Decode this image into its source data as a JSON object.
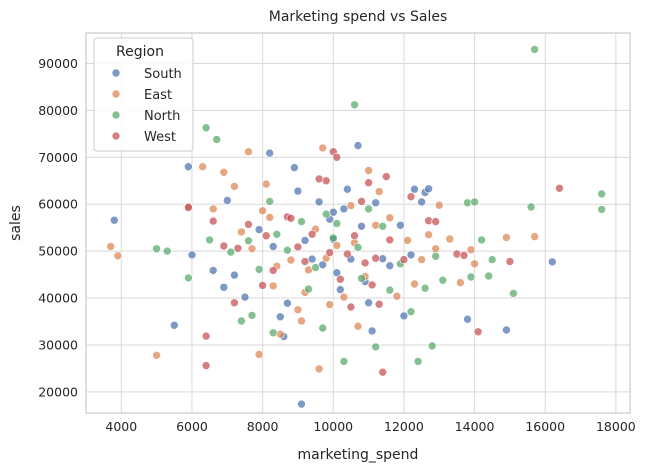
{
  "chart_data": {
    "type": "scatter",
    "title": "Marketing spend vs Sales",
    "xlabel": "marketing_spend",
    "ylabel": "sales",
    "xlim": [
      3000,
      18400
    ],
    "ylim": [
      15500,
      96500
    ],
    "xticks": [
      4000,
      6000,
      8000,
      10000,
      12000,
      14000,
      16000,
      18000
    ],
    "yticks": [
      20000,
      30000,
      40000,
      50000,
      60000,
      70000,
      80000,
      90000
    ],
    "grid": true,
    "legend": {
      "title": "Region",
      "placement": "top-left"
    },
    "series": [
      {
        "name": "South",
        "color": "#4C72B0",
        "points": [
          [
            3800,
            56600
          ],
          [
            5500,
            34200
          ],
          [
            5900,
            68000
          ],
          [
            6000,
            49200
          ],
          [
            6600,
            45900
          ],
          [
            6900,
            42300
          ],
          [
            7000,
            60800
          ],
          [
            7200,
            44900
          ],
          [
            7500,
            40200
          ],
          [
            7900,
            54600
          ],
          [
            8200,
            70900
          ],
          [
            8300,
            51000
          ],
          [
            8500,
            36000
          ],
          [
            8600,
            31800
          ],
          [
            8700,
            38900
          ],
          [
            8900,
            67800
          ],
          [
            9000,
            62800
          ],
          [
            9100,
            17400
          ],
          [
            9200,
            52300
          ],
          [
            9400,
            48300
          ],
          [
            9600,
            60500
          ],
          [
            9700,
            47100
          ],
          [
            9900,
            56800
          ],
          [
            10000,
            52500
          ],
          [
            10000,
            58300
          ],
          [
            10100,
            45400
          ],
          [
            10200,
            41800
          ],
          [
            10300,
            59000
          ],
          [
            10400,
            63200
          ],
          [
            10500,
            48300
          ],
          [
            10700,
            72500
          ],
          [
            10800,
            55300
          ],
          [
            10900,
            43500
          ],
          [
            11000,
            39000
          ],
          [
            11100,
            33000
          ],
          [
            11200,
            60300
          ],
          [
            11400,
            48400
          ],
          [
            11600,
            46900
          ],
          [
            11900,
            55500
          ],
          [
            12000,
            36200
          ],
          [
            12200,
            49200
          ],
          [
            12300,
            63200
          ],
          [
            12500,
            60500
          ],
          [
            12600,
            62500
          ],
          [
            12700,
            63300
          ],
          [
            13800,
            35500
          ],
          [
            14900,
            33200
          ],
          [
            16200,
            47700
          ]
        ]
      },
      {
        "name": "East",
        "color": "#DD8452",
        "points": [
          [
            3700,
            51000
          ],
          [
            3900,
            49000
          ],
          [
            5000,
            27800
          ],
          [
            5900,
            59500
          ],
          [
            6300,
            68000
          ],
          [
            6600,
            59000
          ],
          [
            6900,
            66800
          ],
          [
            7200,
            63800
          ],
          [
            7400,
            54100
          ],
          [
            7600,
            71200
          ],
          [
            7700,
            50500
          ],
          [
            7900,
            28000
          ],
          [
            8000,
            58600
          ],
          [
            8100,
            64300
          ],
          [
            8200,
            57200
          ],
          [
            8300,
            42600
          ],
          [
            8400,
            46800
          ],
          [
            8500,
            32300
          ],
          [
            8800,
            48100
          ],
          [
            9000,
            37500
          ],
          [
            9100,
            35100
          ],
          [
            9200,
            41200
          ],
          [
            9300,
            46000
          ],
          [
            9500,
            54700
          ],
          [
            9600,
            24900
          ],
          [
            9700,
            72000
          ],
          [
            9800,
            48500
          ],
          [
            9900,
            38600
          ],
          [
            10100,
            51200
          ],
          [
            10300,
            40200
          ],
          [
            10500,
            59700
          ],
          [
            10600,
            51800
          ],
          [
            10700,
            34000
          ],
          [
            10900,
            44600
          ],
          [
            11000,
            67200
          ],
          [
            11200,
            55500
          ],
          [
            11300,
            62700
          ],
          [
            11600,
            57100
          ],
          [
            11800,
            40400
          ],
          [
            12100,
            52300
          ],
          [
            12300,
            43000
          ],
          [
            12500,
            48200
          ],
          [
            12700,
            53500
          ],
          [
            12900,
            50500
          ],
          [
            13000,
            59800
          ],
          [
            13300,
            52600
          ],
          [
            13600,
            43300
          ],
          [
            13900,
            50300
          ],
          [
            14000,
            47300
          ],
          [
            14900,
            52900
          ],
          [
            15700,
            53100
          ]
        ]
      },
      {
        "name": "North",
        "color": "#55A868",
        "points": [
          [
            5000,
            50500
          ],
          [
            5300,
            50000
          ],
          [
            5900,
            44300
          ],
          [
            6400,
            76300
          ],
          [
            6500,
            52400
          ],
          [
            6700,
            73800
          ],
          [
            7100,
            49800
          ],
          [
            7400,
            35100
          ],
          [
            7600,
            52200
          ],
          [
            7700,
            36300
          ],
          [
            7900,
            46100
          ],
          [
            8200,
            60600
          ],
          [
            8300,
            32600
          ],
          [
            8400,
            53600
          ],
          [
            8700,
            50200
          ],
          [
            9100,
            56300
          ],
          [
            9300,
            41900
          ],
          [
            9500,
            46500
          ],
          [
            9700,
            33600
          ],
          [
            9800,
            57900
          ],
          [
            10000,
            52800
          ],
          [
            10100,
            55900
          ],
          [
            10300,
            26500
          ],
          [
            10600,
            81200
          ],
          [
            10700,
            50800
          ],
          [
            10800,
            44200
          ],
          [
            11000,
            59000
          ],
          [
            11200,
            29600
          ],
          [
            11400,
            55300
          ],
          [
            11600,
            41700
          ],
          [
            11900,
            47300
          ],
          [
            12200,
            37100
          ],
          [
            12400,
            26500
          ],
          [
            12600,
            42100
          ],
          [
            12800,
            29800
          ],
          [
            12900,
            48900
          ],
          [
            13100,
            43800
          ],
          [
            13800,
            60300
          ],
          [
            13900,
            44500
          ],
          [
            14000,
            60500
          ],
          [
            14200,
            52400
          ],
          [
            14400,
            44700
          ],
          [
            14500,
            48200
          ],
          [
            15100,
            41000
          ],
          [
            15600,
            59400
          ],
          [
            15700,
            93000
          ],
          [
            17600,
            62200
          ],
          [
            17600,
            58900
          ]
        ]
      },
      {
        "name": "West",
        "color": "#C44E52",
        "points": [
          [
            5900,
            59300
          ],
          [
            6400,
            31900
          ],
          [
            6400,
            25600
          ],
          [
            6600,
            56400
          ],
          [
            6900,
            51100
          ],
          [
            7200,
            39000
          ],
          [
            7300,
            50600
          ],
          [
            7600,
            55700
          ],
          [
            8000,
            42700
          ],
          [
            8100,
            53300
          ],
          [
            8300,
            45900
          ],
          [
            8700,
            57300
          ],
          [
            8800,
            57000
          ],
          [
            9000,
            50900
          ],
          [
            9200,
            47800
          ],
          [
            9400,
            53600
          ],
          [
            9600,
            65400
          ],
          [
            9800,
            65000
          ],
          [
            9900,
            49700
          ],
          [
            10000,
            71200
          ],
          [
            10100,
            70000
          ],
          [
            10200,
            44000
          ],
          [
            10400,
            49400
          ],
          [
            10500,
            38100
          ],
          [
            10600,
            53300
          ],
          [
            10800,
            60600
          ],
          [
            10900,
            47500
          ],
          [
            11000,
            64600
          ],
          [
            11100,
            42800
          ],
          [
            11200,
            48500
          ],
          [
            11300,
            38700
          ],
          [
            11400,
            24200
          ],
          [
            11500,
            65900
          ],
          [
            11600,
            52400
          ],
          [
            12000,
            48200
          ],
          [
            12200,
            61600
          ],
          [
            12700,
            56500
          ],
          [
            12900,
            56300
          ],
          [
            13500,
            49400
          ],
          [
            13700,
            49100
          ],
          [
            14100,
            32800
          ],
          [
            15000,
            47800
          ],
          [
            16400,
            63400
          ]
        ]
      }
    ]
  }
}
